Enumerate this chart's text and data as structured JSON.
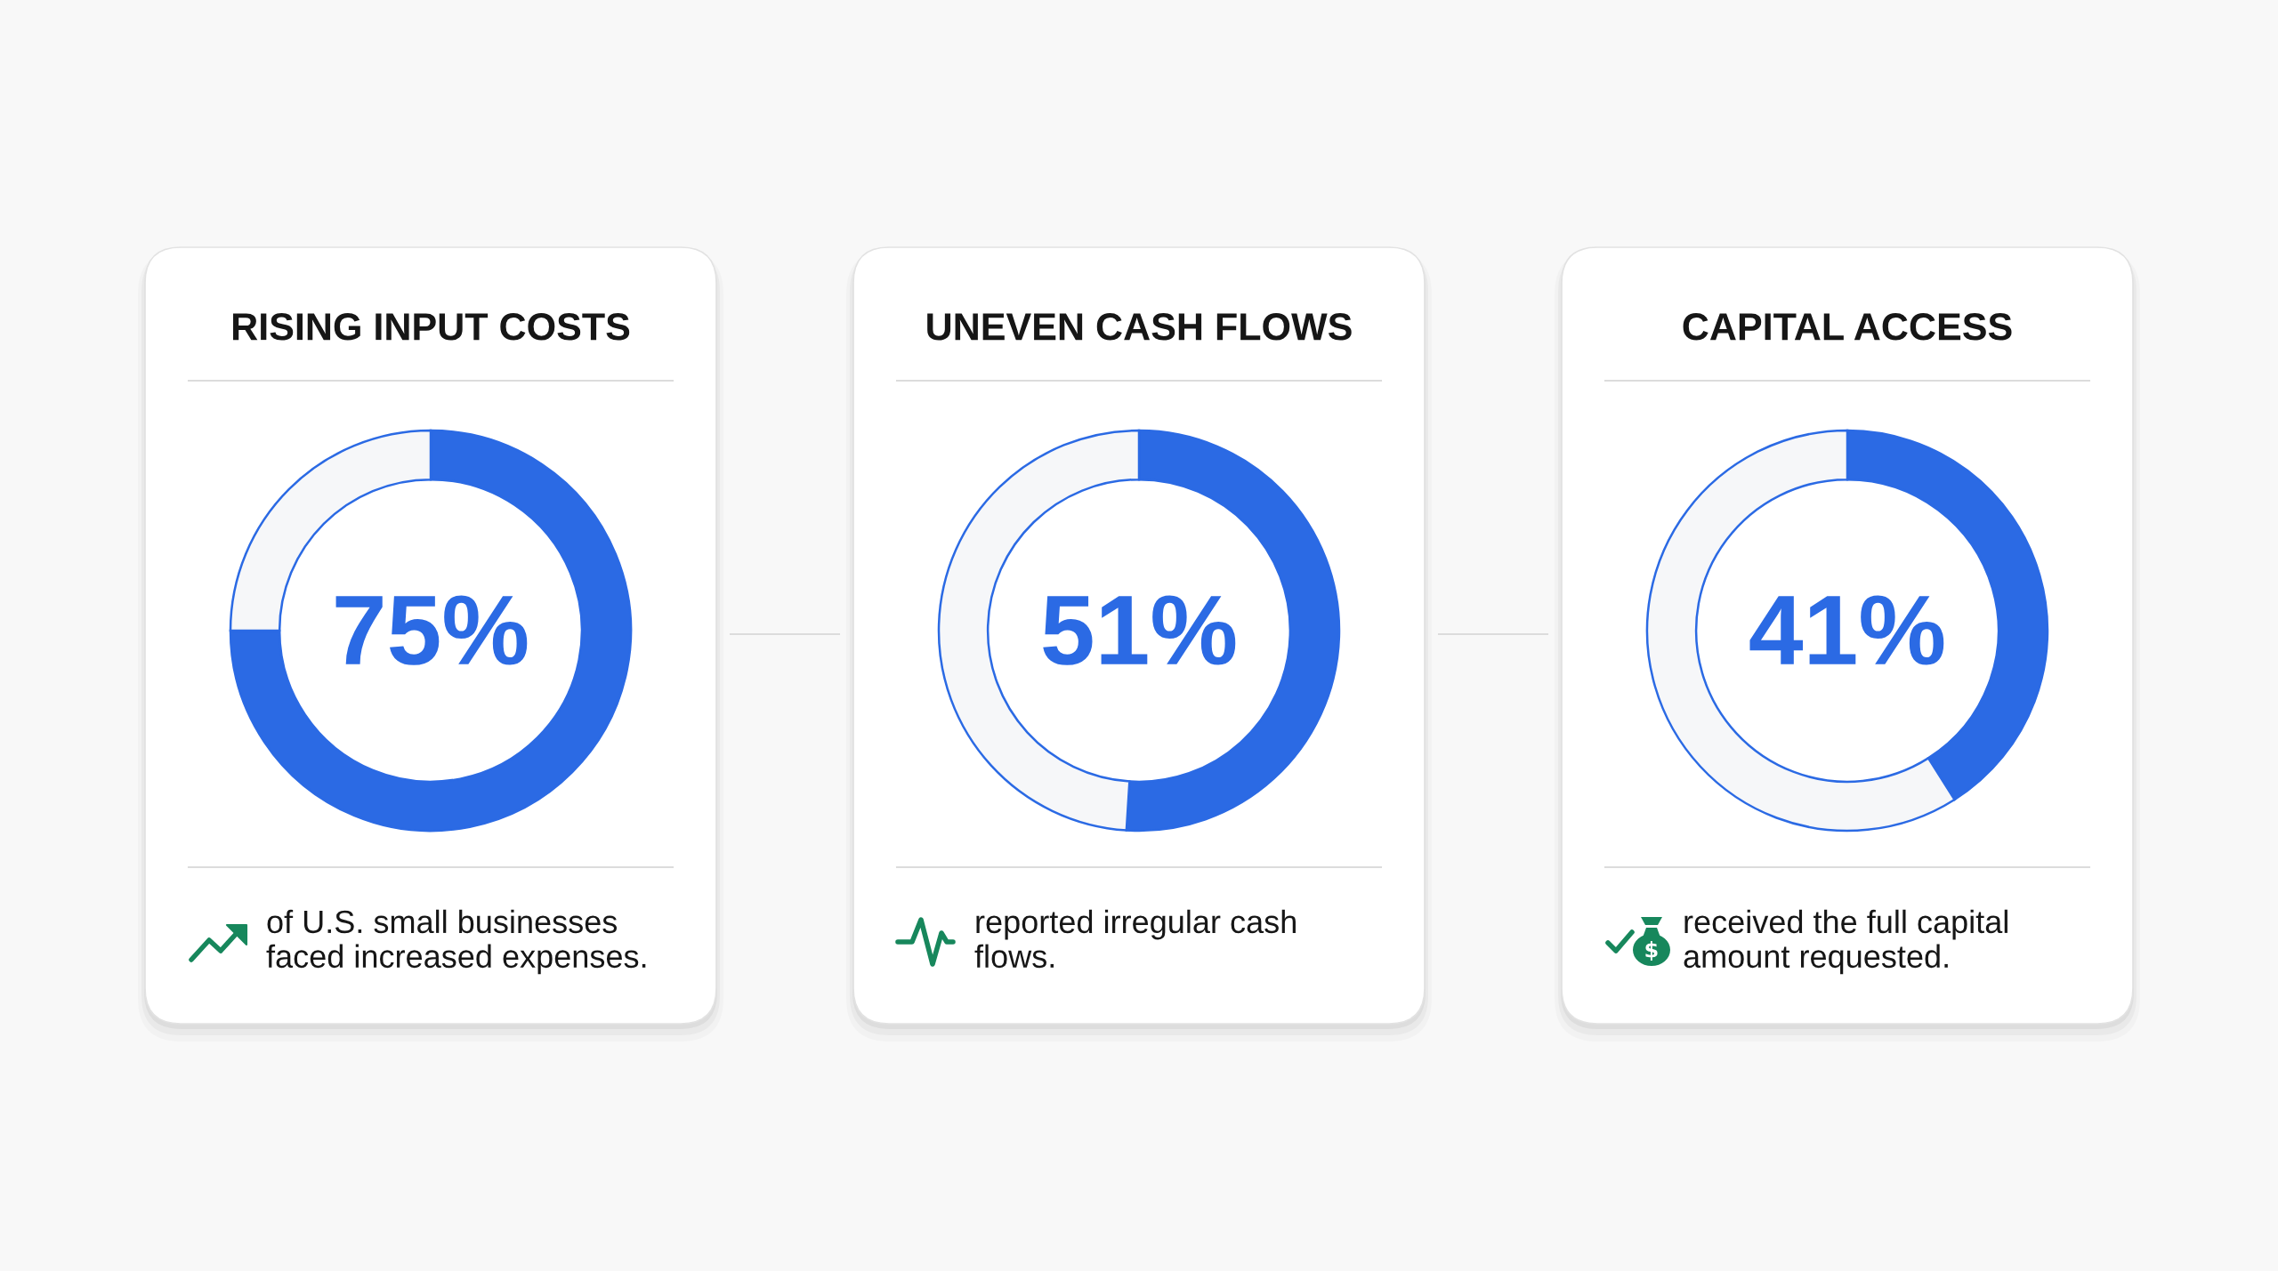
{
  "chart_data": [
    {
      "type": "donut",
      "title": "RISING INPUT COSTS",
      "categories": [
        null,
        null
      ],
      "values": [
        75,
        25
      ],
      "colors": [
        "#2b6ae4",
        "#f6f7f9"
      ],
      "annotations": [
        "75%",
        "of U.S. small businesses faced increased expenses."
      ]
    },
    {
      "type": "donut",
      "title": "UNEVEN CASH FLOWS",
      "categories": [
        null,
        null
      ],
      "values": [
        51,
        49
      ],
      "colors": [
        "#2b6ae4",
        "#f6f7f9"
      ],
      "annotations": [
        "51%",
        "reported irregular cash flows."
      ]
    },
    {
      "type": "donut",
      "title": "CAPITAL ACCESS",
      "categories": [
        null,
        null
      ],
      "values": [
        41,
        59
      ],
      "colors": [
        "#2b6ae4",
        "#f6f7f9"
      ],
      "annotations": [
        "41%",
        "received the full capital amount requested."
      ]
    }
  ]
}
